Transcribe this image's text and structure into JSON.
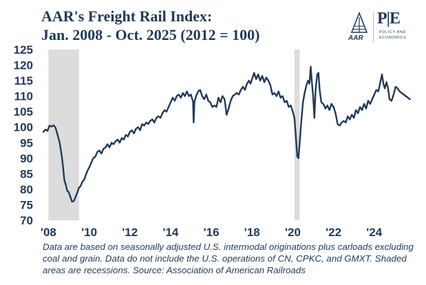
{
  "chart_data": {
    "type": "line",
    "title_line1": "AAR's Freight Rail Index:",
    "title_line2": "Jan. 2008 - Oct. 2025 (2012 = 100)",
    "xlabel": "",
    "ylabel": "",
    "ylim": [
      70,
      125
    ],
    "xlim": [
      2007.75,
      2025.9
    ],
    "y_ticks": [
      "125",
      "120",
      "115",
      "110",
      "105",
      "100",
      "95",
      "90",
      "85",
      "80",
      "75",
      "70"
    ],
    "x_ticks": [
      {
        "label": "'08",
        "x": 2008.0
      },
      {
        "label": "'10",
        "x": 2010.0
      },
      {
        "label": "'12",
        "x": 2012.0
      },
      {
        "label": "'14",
        "x": 2014.0
      },
      {
        "label": "'16",
        "x": 2016.0
      },
      {
        "label": "'18",
        "x": 2018.0
      },
      {
        "label": "'20",
        "x": 2020.0
      },
      {
        "label": "'22",
        "x": 2022.0
      },
      {
        "label": "'24",
        "x": 2024.0
      }
    ],
    "recessions": [
      {
        "start": 2008.0,
        "end": 2009.5
      },
      {
        "start": 2020.08,
        "end": 2020.33
      }
    ],
    "series": [
      {
        "name": "Freight Rail Index",
        "color": "#1f3a5a",
        "points": [
          [
            2007.75,
            98.5
          ],
          [
            2007.85,
            99.2
          ],
          [
            2007.95,
            98.8
          ],
          [
            2008.05,
            100.5
          ],
          [
            2008.15,
            100.2
          ],
          [
            2008.25,
            100.6
          ],
          [
            2008.35,
            99.8
          ],
          [
            2008.45,
            97.5
          ],
          [
            2008.55,
            95.0
          ],
          [
            2008.65,
            91.0
          ],
          [
            2008.72,
            87.0
          ],
          [
            2008.78,
            83.0
          ],
          [
            2008.85,
            81.5
          ],
          [
            2008.92,
            79.5
          ],
          [
            2009.0,
            79.0
          ],
          [
            2009.08,
            77.5
          ],
          [
            2009.16,
            76.0
          ],
          [
            2009.25,
            76.2
          ],
          [
            2009.33,
            77.5
          ],
          [
            2009.42,
            79.0
          ],
          [
            2009.5,
            80.5
          ],
          [
            2009.58,
            81.0
          ],
          [
            2009.67,
            82.5
          ],
          [
            2009.75,
            83.0
          ],
          [
            2009.83,
            84.5
          ],
          [
            2009.92,
            86.0
          ],
          [
            2010.0,
            87.0
          ],
          [
            2010.1,
            88.5
          ],
          [
            2010.2,
            90.0
          ],
          [
            2010.3,
            90.5
          ],
          [
            2010.4,
            92.0
          ],
          [
            2010.5,
            92.5
          ],
          [
            2010.6,
            91.5
          ],
          [
            2010.7,
            93.0
          ],
          [
            2010.8,
            93.5
          ],
          [
            2010.9,
            94.5
          ],
          [
            2011.0,
            93.5
          ],
          [
            2011.1,
            95.0
          ],
          [
            2011.2,
            94.5
          ],
          [
            2011.3,
            95.5
          ],
          [
            2011.4,
            96.0
          ],
          [
            2011.5,
            95.0
          ],
          [
            2011.6,
            96.5
          ],
          [
            2011.7,
            96.0
          ],
          [
            2011.8,
            97.5
          ],
          [
            2011.9,
            97.0
          ],
          [
            2012.0,
            98.5
          ],
          [
            2012.1,
            99.0
          ],
          [
            2012.2,
            98.0
          ],
          [
            2012.3,
            99.5
          ],
          [
            2012.4,
            100.0
          ],
          [
            2012.5,
            99.0
          ],
          [
            2012.6,
            101.0
          ],
          [
            2012.7,
            100.5
          ],
          [
            2012.8,
            101.5
          ],
          [
            2012.9,
            101.0
          ],
          [
            2013.0,
            102.0
          ],
          [
            2013.1,
            102.5
          ],
          [
            2013.2,
            101.5
          ],
          [
            2013.3,
            103.0
          ],
          [
            2013.4,
            103.5
          ],
          [
            2013.5,
            103.0
          ],
          [
            2013.6,
            104.5
          ],
          [
            2013.7,
            105.5
          ],
          [
            2013.8,
            105.0
          ],
          [
            2013.9,
            106.5
          ],
          [
            2014.0,
            108.0
          ],
          [
            2014.1,
            109.5
          ],
          [
            2014.2,
            108.5
          ],
          [
            2014.3,
            110.0
          ],
          [
            2014.4,
            110.5
          ],
          [
            2014.5,
            109.5
          ],
          [
            2014.6,
            111.0
          ],
          [
            2014.7,
            110.0
          ],
          [
            2014.8,
            111.5
          ],
          [
            2014.9,
            110.0
          ],
          [
            2015.0,
            110.5
          ],
          [
            2015.06,
            109.0
          ],
          [
            2015.1,
            108.5
          ],
          [
            2015.13,
            101.5
          ],
          [
            2015.17,
            108.0
          ],
          [
            2015.25,
            110.0
          ],
          [
            2015.35,
            111.5
          ],
          [
            2015.45,
            112.0
          ],
          [
            2015.55,
            110.0
          ],
          [
            2015.65,
            109.0
          ],
          [
            2015.75,
            110.5
          ],
          [
            2015.85,
            108.5
          ],
          [
            2015.95,
            108.0
          ],
          [
            2016.05,
            106.5
          ],
          [
            2016.15,
            107.0
          ],
          [
            2016.25,
            106.5
          ],
          [
            2016.35,
            109.5
          ],
          [
            2016.45,
            108.0
          ],
          [
            2016.55,
            110.0
          ],
          [
            2016.65,
            109.0
          ],
          [
            2016.75,
            104.0
          ],
          [
            2016.85,
            106.0
          ],
          [
            2016.95,
            108.5
          ],
          [
            2017.05,
            110.0
          ],
          [
            2017.15,
            110.5
          ],
          [
            2017.25,
            111.0
          ],
          [
            2017.35,
            110.5
          ],
          [
            2017.45,
            112.0
          ],
          [
            2017.55,
            113.0
          ],
          [
            2017.65,
            112.0
          ],
          [
            2017.75,
            114.0
          ],
          [
            2017.85,
            115.0
          ],
          [
            2017.92,
            114.0
          ],
          [
            2018.0,
            115.5
          ],
          [
            2018.1,
            117.5
          ],
          [
            2018.2,
            115.5
          ],
          [
            2018.3,
            117.0
          ],
          [
            2018.4,
            115.0
          ],
          [
            2018.5,
            116.5
          ],
          [
            2018.6,
            114.5
          ],
          [
            2018.7,
            116.0
          ],
          [
            2018.8,
            115.0
          ],
          [
            2018.9,
            113.5
          ],
          [
            2019.0,
            110.5
          ],
          [
            2019.1,
            111.0
          ],
          [
            2019.2,
            110.0
          ],
          [
            2019.3,
            111.5
          ],
          [
            2019.4,
            109.5
          ],
          [
            2019.5,
            110.0
          ],
          [
            2019.6,
            108.0
          ],
          [
            2019.7,
            108.5
          ],
          [
            2019.8,
            106.5
          ],
          [
            2019.9,
            107.0
          ],
          [
            2020.0,
            105.0
          ],
          [
            2020.08,
            103.0
          ],
          [
            2020.15,
            97.0
          ],
          [
            2020.22,
            90.5
          ],
          [
            2020.28,
            90.0
          ],
          [
            2020.35,
            96.0
          ],
          [
            2020.42,
            102.0
          ],
          [
            2020.5,
            108.0
          ],
          [
            2020.58,
            111.0
          ],
          [
            2020.67,
            113.5
          ],
          [
            2020.75,
            115.0
          ],
          [
            2020.82,
            114.0
          ],
          [
            2020.88,
            119.5
          ],
          [
            2020.92,
            116.0
          ],
          [
            2020.97,
            112.0
          ],
          [
            2021.0,
            110.0
          ],
          [
            2021.06,
            103.0
          ],
          [
            2021.12,
            112.0
          ],
          [
            2021.2,
            117.0
          ],
          [
            2021.26,
            117.5
          ],
          [
            2021.32,
            112.0
          ],
          [
            2021.4,
            108.0
          ],
          [
            2021.5,
            107.5
          ],
          [
            2021.6,
            106.0
          ],
          [
            2021.7,
            107.0
          ],
          [
            2021.8,
            105.5
          ],
          [
            2021.9,
            107.5
          ],
          [
            2022.0,
            106.5
          ],
          [
            2022.1,
            104.5
          ],
          [
            2022.2,
            101.0
          ],
          [
            2022.3,
            100.5
          ],
          [
            2022.4,
            101.5
          ],
          [
            2022.5,
            102.0
          ],
          [
            2022.6,
            101.5
          ],
          [
            2022.7,
            103.5
          ],
          [
            2022.8,
            102.5
          ],
          [
            2022.9,
            104.0
          ],
          [
            2023.0,
            103.0
          ],
          [
            2023.1,
            105.5
          ],
          [
            2023.2,
            104.5
          ],
          [
            2023.3,
            106.5
          ],
          [
            2023.4,
            105.5
          ],
          [
            2023.5,
            107.5
          ],
          [
            2023.6,
            106.0
          ],
          [
            2023.7,
            108.5
          ],
          [
            2023.8,
            107.5
          ],
          [
            2023.9,
            109.0
          ],
          [
            2024.0,
            110.5
          ],
          [
            2024.1,
            112.0
          ],
          [
            2024.2,
            111.5
          ],
          [
            2024.3,
            114.5
          ],
          [
            2024.38,
            117.0
          ],
          [
            2024.45,
            114.0
          ],
          [
            2024.52,
            112.5
          ],
          [
            2024.6,
            114.5
          ],
          [
            2024.68,
            112.5
          ],
          [
            2024.75,
            109.0
          ],
          [
            2024.85,
            108.5
          ],
          [
            2024.95,
            110.5
          ],
          [
            2025.05,
            113.0
          ],
          [
            2025.15,
            112.5
          ],
          [
            2025.25,
            111.5
          ],
          [
            2025.35,
            111.0
          ],
          [
            2025.45,
            110.5
          ],
          [
            2025.55,
            110.0
          ],
          [
            2025.65,
            109.5
          ],
          [
            2025.75,
            109.0
          ]
        ]
      }
    ]
  },
  "logo": {
    "aar_text": "AAR",
    "pe_text": "P|E",
    "pe_sub1": "POLICY AND",
    "pe_sub2": "ECONOMICS"
  },
  "footnote": "Data are based on seasonally adjusted U.S. intermodal originations plus carloads excluding coal and grain. Data do not include the U.S. operations of CN, CPKC, and GMXT. Shaded areas are recessions. Source: Association of American Railroads",
  "colors": {
    "line": "#1f3a5a",
    "recession": "#dcdcdc",
    "text": "#1f3a5a"
  }
}
